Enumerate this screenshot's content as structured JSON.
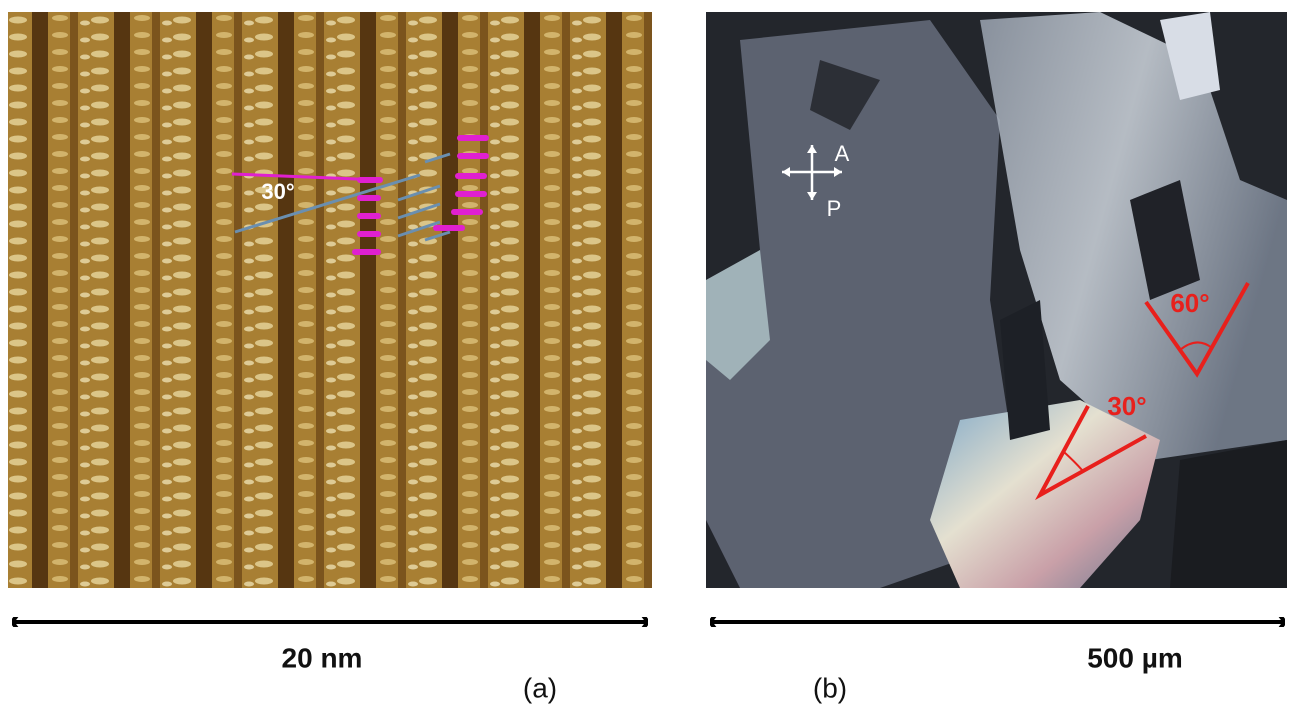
{
  "panels": {
    "a": {
      "angle_label": "30°",
      "scale_label": "20 nm",
      "label": "(a)"
    },
    "b": {
      "analyzer_label": "A",
      "polarizer_label": "P",
      "angle_60_label": "60°",
      "angle_30_label": "30°",
      "scale_label": "500 µm",
      "label": "(b)"
    }
  }
}
